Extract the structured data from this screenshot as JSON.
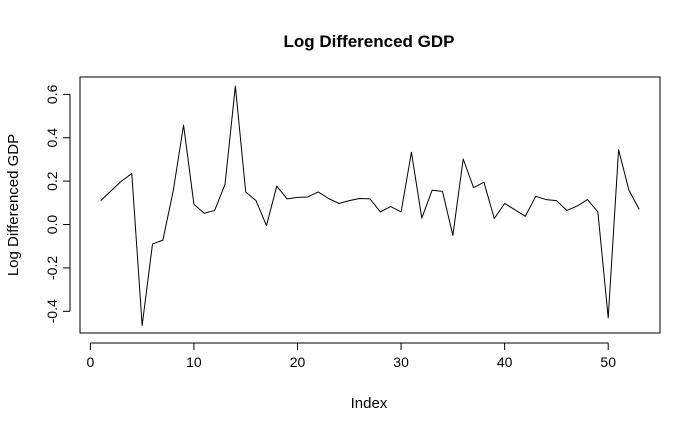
{
  "chart_data": {
    "type": "line",
    "title": "Log Differenced GDP",
    "xlabel": "Index",
    "ylabel": "Log Differenced GDP",
    "xlim": [
      -1,
      55
    ],
    "ylim": [
      -0.5,
      0.68
    ],
    "x_ticks": [
      0,
      10,
      20,
      30,
      40,
      50
    ],
    "y_ticks": [
      -0.4,
      -0.2,
      0.0,
      0.2,
      0.4,
      0.6
    ],
    "x_tick_labels": [
      "0",
      "10",
      "20",
      "30",
      "40",
      "50"
    ],
    "y_tick_labels": [
      "-0.4",
      "-0.2",
      "0.0",
      "0.2",
      "0.4",
      "0.6"
    ],
    "grid": false,
    "series": [
      {
        "color": "#000000",
        "x": [
          1,
          2,
          3,
          4,
          5,
          6,
          7,
          8,
          9,
          10,
          11,
          12,
          13,
          14,
          15,
          16,
          17,
          18,
          19,
          20,
          21,
          22,
          23,
          24,
          25,
          26,
          27,
          28,
          29,
          30,
          31,
          32,
          33,
          34,
          35,
          36,
          37,
          38,
          39,
          40,
          41,
          42,
          43,
          44,
          45,
          46,
          47,
          48,
          49,
          50,
          51,
          52,
          53
        ],
        "y": [
          0.11,
          0.155,
          0.2,
          0.235,
          -0.465,
          -0.09,
          -0.072,
          0.155,
          0.458,
          0.093,
          0.052,
          0.065,
          0.185,
          0.638,
          0.15,
          0.11,
          -0.005,
          0.177,
          0.118,
          0.125,
          0.127,
          0.15,
          0.12,
          0.097,
          0.11,
          0.12,
          0.118,
          0.058,
          0.083,
          0.058,
          0.333,
          0.03,
          0.158,
          0.153,
          -0.05,
          0.302,
          0.17,
          0.195,
          0.028,
          0.097,
          0.068,
          0.038,
          0.13,
          0.115,
          0.11,
          0.065,
          0.085,
          0.115,
          0.058,
          -0.43,
          0.345,
          0.158,
          0.07
        ]
      }
    ]
  }
}
